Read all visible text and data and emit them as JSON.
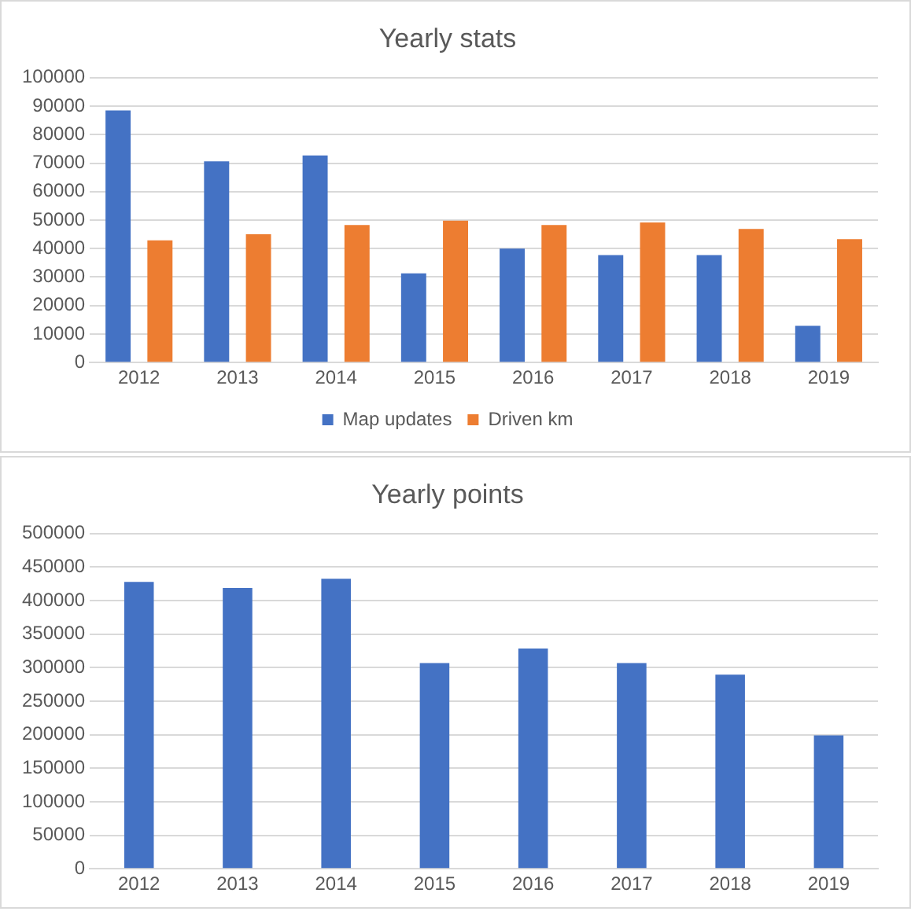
{
  "chart_data": [
    {
      "type": "bar",
      "title": "Yearly stats",
      "categories": [
        "2012",
        "2013",
        "2014",
        "2015",
        "2016",
        "2017",
        "2018",
        "2019"
      ],
      "series": [
        {
          "name": "Map updates",
          "color": "#4472c4",
          "values": [
            88500,
            70600,
            72700,
            31300,
            40000,
            37700,
            37700,
            12900
          ]
        },
        {
          "name": "Driven km",
          "color": "#ed7d31",
          "values": [
            42900,
            45000,
            48300,
            49800,
            48300,
            49200,
            46900,
            43300
          ]
        }
      ],
      "ylim": [
        0,
        100000
      ],
      "yticks": [
        0,
        10000,
        20000,
        30000,
        40000,
        50000,
        60000,
        70000,
        80000,
        90000,
        100000
      ],
      "grid": "y",
      "legend": "bottom"
    },
    {
      "type": "bar",
      "title": "Yearly points",
      "categories": [
        "2012",
        "2013",
        "2014",
        "2015",
        "2016",
        "2017",
        "2018",
        "2019"
      ],
      "series": [
        {
          "color": "#4472c4",
          "values": [
            428000,
            419000,
            432500,
            307000,
            328600,
            307000,
            289500,
            199000
          ]
        }
      ],
      "ylim": [
        0,
        500000
      ],
      "yticks": [
        0,
        50000,
        100000,
        150000,
        200000,
        250000,
        300000,
        350000,
        400000,
        450000,
        500000
      ],
      "grid": "y"
    }
  ]
}
